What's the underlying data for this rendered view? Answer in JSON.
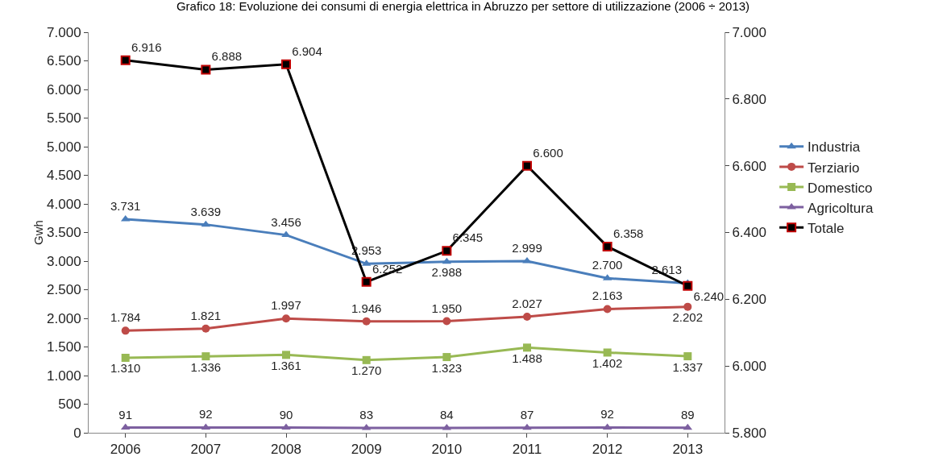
{
  "chart_data": {
    "type": "line",
    "title": "Grafico 18: Evoluzione dei consumi di energia elettrica in Abruzzo per settore di utilizzazione (2006 ÷ 2013)",
    "ylabel": "Gwh",
    "categories": [
      "2006",
      "2007",
      "2008",
      "2009",
      "2010",
      "2011",
      "2012",
      "2013"
    ],
    "series": [
      {
        "name": "Industria",
        "color": "#4a7ebb",
        "marker": "triangle",
        "values": [
          3731,
          3639,
          3456,
          2953,
          2988,
          2999,
          2700,
          2613
        ],
        "value_labels": [
          "3.731",
          "3.639",
          "3.456",
          "2.953",
          "2.988",
          "2.999",
          "2.700",
          "2.613"
        ]
      },
      {
        "name": "Terziario",
        "color": "#be4b48",
        "marker": "circle",
        "values": [
          1784,
          1821,
          1997,
          1946,
          1950,
          2027,
          2163,
          2202
        ],
        "value_labels": [
          "1.784",
          "1.821",
          "1.997",
          "1.946",
          "1.950",
          "2.027",
          "2.163",
          "2.202"
        ]
      },
      {
        "name": "Domestico",
        "color": "#98b954",
        "marker": "square",
        "values": [
          1310,
          1336,
          1361,
          1270,
          1323,
          1488,
          1402,
          1337
        ],
        "value_labels": [
          "1.310",
          "1.336",
          "1.361",
          "1.270",
          "1.323",
          "1.488",
          "1.402",
          "1.337"
        ]
      },
      {
        "name": "Agricoltura",
        "color": "#7d60a0",
        "marker": "triangle",
        "values": [
          91,
          92,
          90,
          83,
          84,
          87,
          92,
          89
        ],
        "value_labels": [
          "91",
          "92",
          "90",
          "83",
          "84",
          "87",
          "92",
          "89"
        ]
      },
      {
        "name": "Totale",
        "color": "#000000",
        "marker": "square",
        "axis": "y2",
        "values": [
          6916,
          6888,
          6904,
          6252,
          6345,
          6600,
          6358,
          6240
        ],
        "value_labels": [
          "6.916",
          "6.888",
          "6.904",
          "6.252",
          "6.345",
          "6.600",
          "6.358",
          "6.240"
        ]
      }
    ],
    "ylim": [
      0,
      7000
    ],
    "yticks": [
      0,
      {
        "value": 500,
        "label": "500"
      },
      {
        "value": 1000,
        "label": "1.000"
      },
      {
        "value": 1500,
        "label": "1.500"
      },
      {
        "value": 2000,
        "label": "2.000"
      },
      {
        "value": 2500,
        "label": "2.500"
      },
      {
        "value": 3000,
        "label": "3.000"
      },
      {
        "value": 3500,
        "label": "3.500"
      },
      {
        "value": 4000,
        "label": "4.000"
      },
      {
        "value": 4500,
        "label": "4.500"
      },
      {
        "value": 5000,
        "label": "5.000"
      },
      {
        "value": 5500,
        "label": "5.500"
      },
      {
        "value": 6000,
        "label": "6.000"
      },
      {
        "value": 6500,
        "label": "6.500"
      },
      {
        "value": 7000,
        "label": "7.000"
      }
    ],
    "y2lim": [
      5800,
      7000
    ],
    "y2ticks": [
      {
        "value": 5800,
        "label": "5.800"
      },
      {
        "value": 6000,
        "label": "6.000"
      },
      {
        "value": 6200,
        "label": "6.200"
      },
      {
        "value": 6400,
        "label": "6.400"
      },
      {
        "value": 6600,
        "label": "6.600"
      },
      {
        "value": 6800,
        "label": "6.800"
      },
      {
        "value": 7000,
        "label": "7.000"
      }
    ],
    "grid": false,
    "legend": "right"
  }
}
